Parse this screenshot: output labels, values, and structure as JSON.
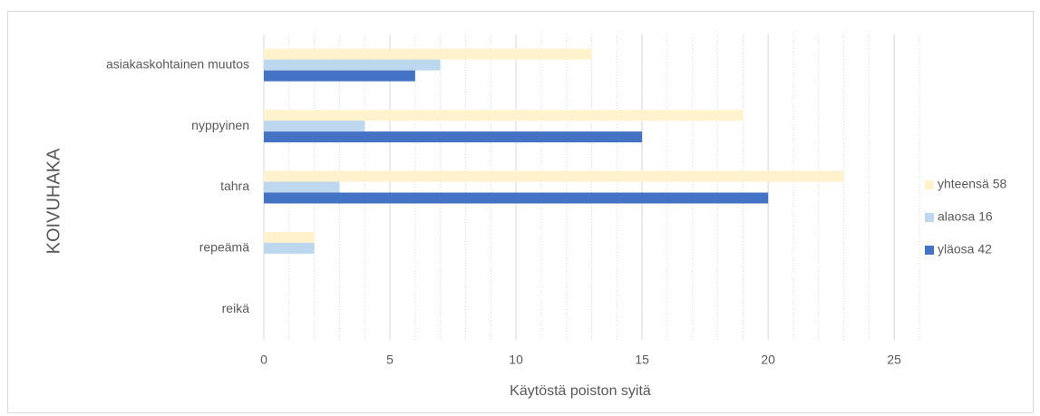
{
  "chart_data": {
    "type": "hbar",
    "categories": [
      "asiakaskohtainen muutos",
      "nyppyinen",
      "tahra",
      "repeämä",
      "reikä"
    ],
    "series": [
      {
        "name": "yhteensä 58",
        "color": "#fff2cc",
        "values": [
          13,
          19,
          23,
          2,
          0
        ]
      },
      {
        "name": "alaosa 16",
        "color": "#bdd7ee",
        "values": [
          7,
          4,
          3,
          2,
          0
        ]
      },
      {
        "name": "yläosa 42",
        "color": "#4472c4",
        "values": [
          6,
          15,
          20,
          0,
          0
        ]
      }
    ],
    "xlim": [
      0,
      26
    ],
    "xticks": [
      0,
      5,
      10,
      15,
      20,
      25
    ],
    "grid": true,
    "minor_grid_step": 1,
    "xlabel": "Käytöstä poiston syitä",
    "ylabel": "KOIVUHAKA",
    "legend": "right"
  }
}
